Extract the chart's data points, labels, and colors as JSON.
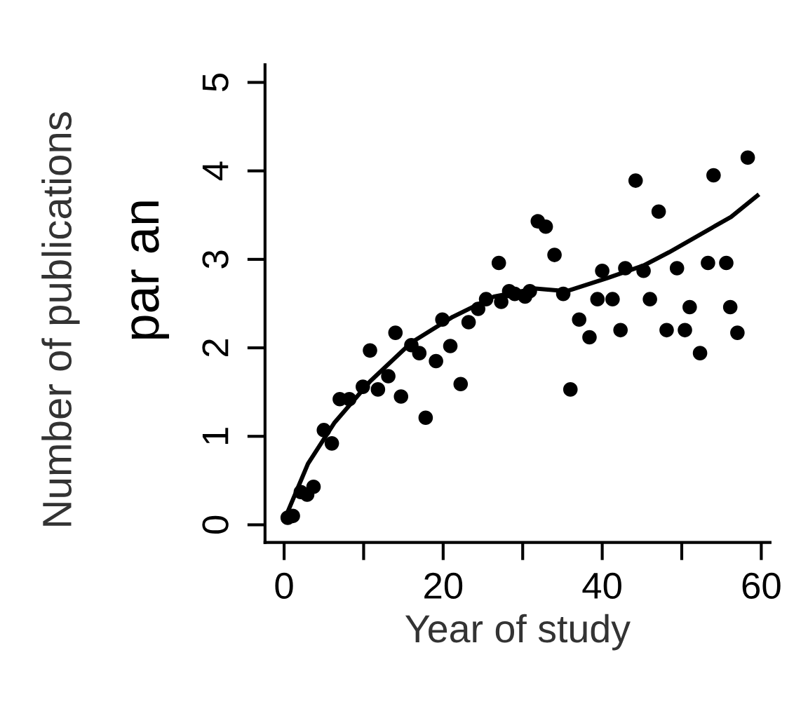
{
  "chart_data": {
    "type": "scatter",
    "xlabel": "Year of study",
    "ylabel": "Number of publications",
    "annotations": [
      "par an"
    ],
    "xlim": [
      -2.4,
      61.1
    ],
    "ylim": [
      -0.2,
      5.2
    ],
    "xticks": [
      0,
      {
        "value": 10,
        "label": null
      },
      20,
      {
        "value": 30,
        "label": null
      },
      40,
      {
        "value": 50,
        "label": null
      },
      60
    ],
    "yticks": [
      0,
      1,
      2,
      3,
      4,
      5
    ],
    "grid": false,
    "legend": false,
    "marker": "circle",
    "series": [
      {
        "color": "#000000",
        "x": [
          0.45,
          1.1,
          2.1,
          2.9,
          3.7,
          5,
          6,
          7,
          8.2,
          9.9,
          10.8,
          11.8,
          13.1,
          14,
          14.7,
          16,
          17,
          17.8,
          19.1,
          19.9,
          20.9,
          22.2,
          23.2,
          24.4,
          25.4,
          27,
          27.3,
          28.3,
          29,
          30.3,
          30.9,
          31.9,
          32.9,
          34,
          35.1,
          36,
          37.1,
          38.4,
          39.4,
          40,
          41.3,
          42.3,
          42.9,
          44.2,
          45.2,
          46,
          47.1,
          48.1,
          49.4,
          50.4,
          51,
          52.3,
          53.3,
          54,
          55.6,
          56.1,
          57,
          58.3
        ],
        "values": [
          0.08,
          0.1,
          0.37,
          0.34,
          0.43,
          1.07,
          0.92,
          1.42,
          1.42,
          1.56,
          1.97,
          1.53,
          1.68,
          2.17,
          1.45,
          2.03,
          1.94,
          1.21,
          1.85,
          2.32,
          2.02,
          1.59,
          2.29,
          2.44,
          2.55,
          2.96,
          2.52,
          2.64,
          2.61,
          2.58,
          2.64,
          3.43,
          3.37,
          3.05,
          2.61,
          1.53,
          2.32,
          2.12,
          2.55,
          2.87,
          2.55,
          2.2,
          2.9,
          3.89,
          2.87,
          2.55,
          3.54,
          2.2,
          2.9,
          2.2,
          2.46,
          1.94,
          2.96,
          3.95,
          2.96,
          2.46,
          2.17,
          4.15
        ]
      },
      {
        "type": "line",
        "color": "#000000",
        "marker": "none",
        "line_style": "solid",
        "x": [
          0,
          3,
          6.3,
          10.8,
          16,
          21.2,
          26.4,
          31.6,
          35.5,
          40.7,
          45.2,
          48.4,
          52.3,
          56.2,
          59.5
        ],
        "values": [
          0.05,
          0.69,
          1.15,
          1.62,
          2.06,
          2.35,
          2.58,
          2.67,
          2.64,
          2.79,
          2.93,
          3.08,
          3.28,
          3.48,
          3.72
        ]
      }
    ]
  }
}
